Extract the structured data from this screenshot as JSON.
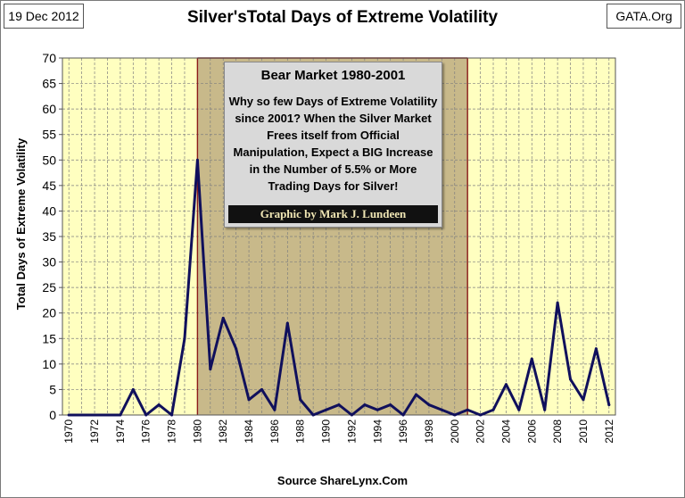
{
  "header": {
    "date": "19 Dec 2012",
    "source_tag": "GATA.Org",
    "title": "Silver'sTotal Days of Extreme Volatility"
  },
  "footer": {
    "source": "Source ShareLynx.Com"
  },
  "annotation": {
    "title": "Bear Market 1980-2001",
    "body": "Why so few Days of Extreme Volatility since 2001?  When the Silver Market Frees itself from Official Manipulation, Expect a BIG Increase in the Number of 5.5% or More Trading Days for Silver!",
    "credit": "Graphic by Mark J. Lundeen"
  },
  "colors": {
    "plot_background": "#ffffc0",
    "bear_shade": "#c8b98a",
    "series_line": "#10105c",
    "grid": "#7f7f7f",
    "bear_border": "#8b1a1a"
  },
  "chart_data": {
    "type": "line",
    "title": "Silver'sTotal Days of Extreme Volatility",
    "xlabel": "",
    "ylabel": "Total Days of Extreme Volatility",
    "xlim": [
      1970,
      2012
    ],
    "ylim": [
      0,
      70
    ],
    "y_ticks": [
      0,
      5,
      10,
      15,
      20,
      25,
      30,
      35,
      40,
      45,
      50,
      55,
      60,
      65,
      70
    ],
    "x_tick_labels": [
      "1970",
      "1972",
      "1974",
      "1976",
      "1978",
      "1980",
      "1982",
      "1984",
      "1986",
      "1988",
      "1990",
      "1992",
      "1994",
      "1996",
      "1998",
      "2000",
      "2002",
      "2004",
      "2006",
      "2008",
      "2010",
      "2012"
    ],
    "grid": true,
    "shaded_region": {
      "label": "Bear Market 1980-2001",
      "x_start": 1980,
      "x_end": 2001
    },
    "series": [
      {
        "x": [
          1970,
          1971,
          1972,
          1973,
          1974,
          1975,
          1976,
          1977,
          1978,
          1979,
          1980,
          1981,
          1982,
          1983,
          1984,
          1985,
          1986,
          1987,
          1988,
          1989,
          1990,
          1991,
          1992,
          1993,
          1994,
          1995,
          1996,
          1997,
          1998,
          1999,
          2000,
          2001,
          2002,
          2003,
          2004,
          2005,
          2006,
          2007,
          2008,
          2009,
          2010,
          2011,
          2012
        ],
        "values": [
          0,
          0,
          0,
          0,
          0,
          5,
          0,
          2,
          0,
          15,
          50,
          9,
          19,
          13,
          3,
          5,
          1,
          18,
          3,
          0,
          1,
          2,
          0,
          2,
          1,
          2,
          0,
          4,
          2,
          1,
          0,
          1,
          0,
          1,
          6,
          1,
          11,
          1,
          22,
          7,
          3,
          13,
          2
        ]
      }
    ]
  }
}
